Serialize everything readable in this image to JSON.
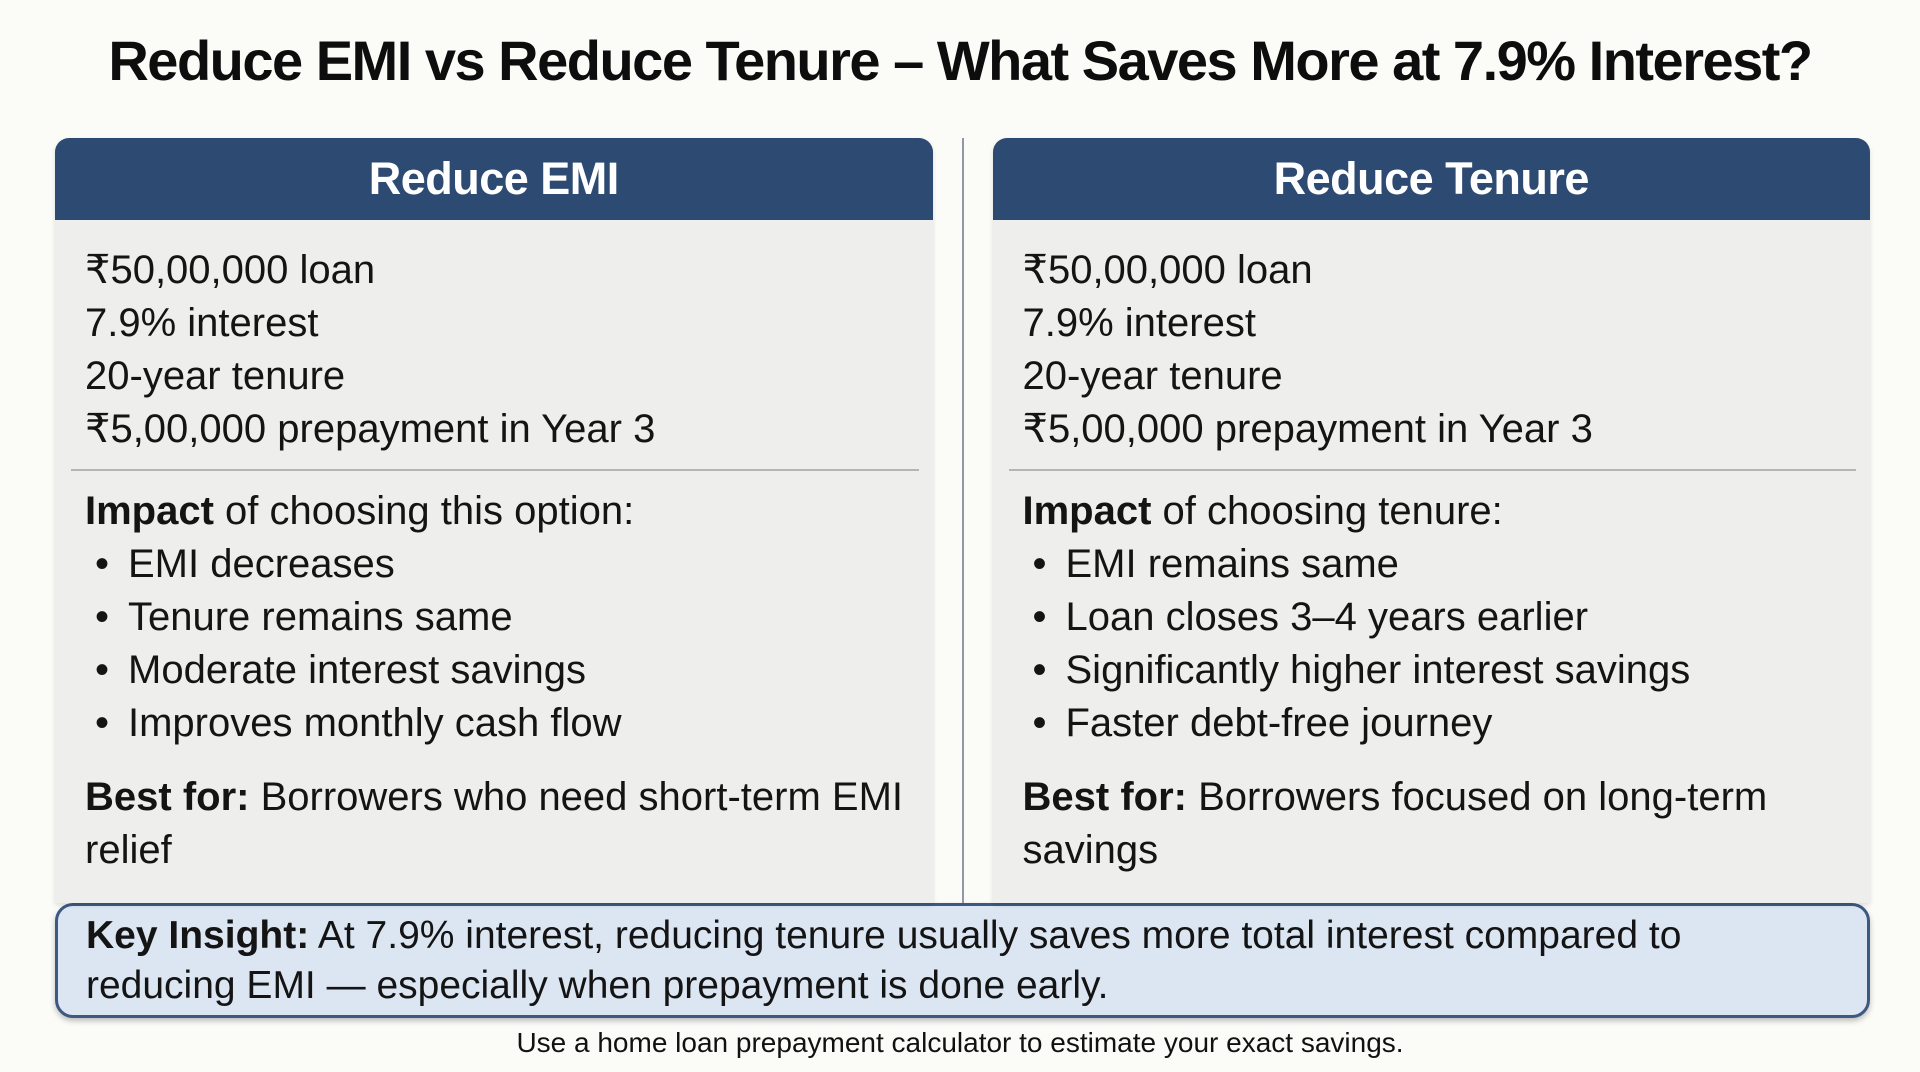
{
  "title": "Reduce EMI vs Reduce Tenure – What Saves More at 7.9% Interest?",
  "bullet_char": "•",
  "columns": [
    {
      "header": "Reduce EMI",
      "loan_details": [
        "₹50,00,000 loan",
        "7.9% interest",
        "20-year tenure",
        "₹5,00,000 prepayment in Year 3"
      ],
      "impact_label": "Impact",
      "impact_rest": " of choosing this option:",
      "bullets": [
        "EMI decreases",
        "Tenure remains same",
        "Moderate interest savings",
        "Improves monthly cash flow"
      ],
      "best_for_label": "Best for:",
      "best_for_rest": " Borrowers who need short-term EMI relief"
    },
    {
      "header": "Reduce Tenure",
      "loan_details": [
        "₹50,00,000 loan",
        "7.9% interest",
        "20-year tenure",
        "₹5,00,000 prepayment in Year 3"
      ],
      "impact_label": "Impact",
      "impact_rest": " of choosing tenure:",
      "bullets": [
        "EMI remains same",
        "Loan closes 3–4 years earlier",
        "Significantly higher interest savings",
        "Faster debt-free journey"
      ],
      "best_for_label": "Best for:",
      "best_for_rest": " Borrowers focused on long-term savings"
    }
  ],
  "key_insight": {
    "label": "Key Insight:",
    "text": " At 7.9% interest, reducing tenure usually saves more total interest compared to reducing EMI — especially when prepayment is done early."
  },
  "footer": "Use a home loan prepayment calculator to estimate your exact savings.",
  "colors": {
    "header_navy": "#2d4a72",
    "card_body_gray": "#eeeeec",
    "insight_background": "#dce5f2",
    "insight_border": "#3d5982",
    "text": "#141414"
  }
}
